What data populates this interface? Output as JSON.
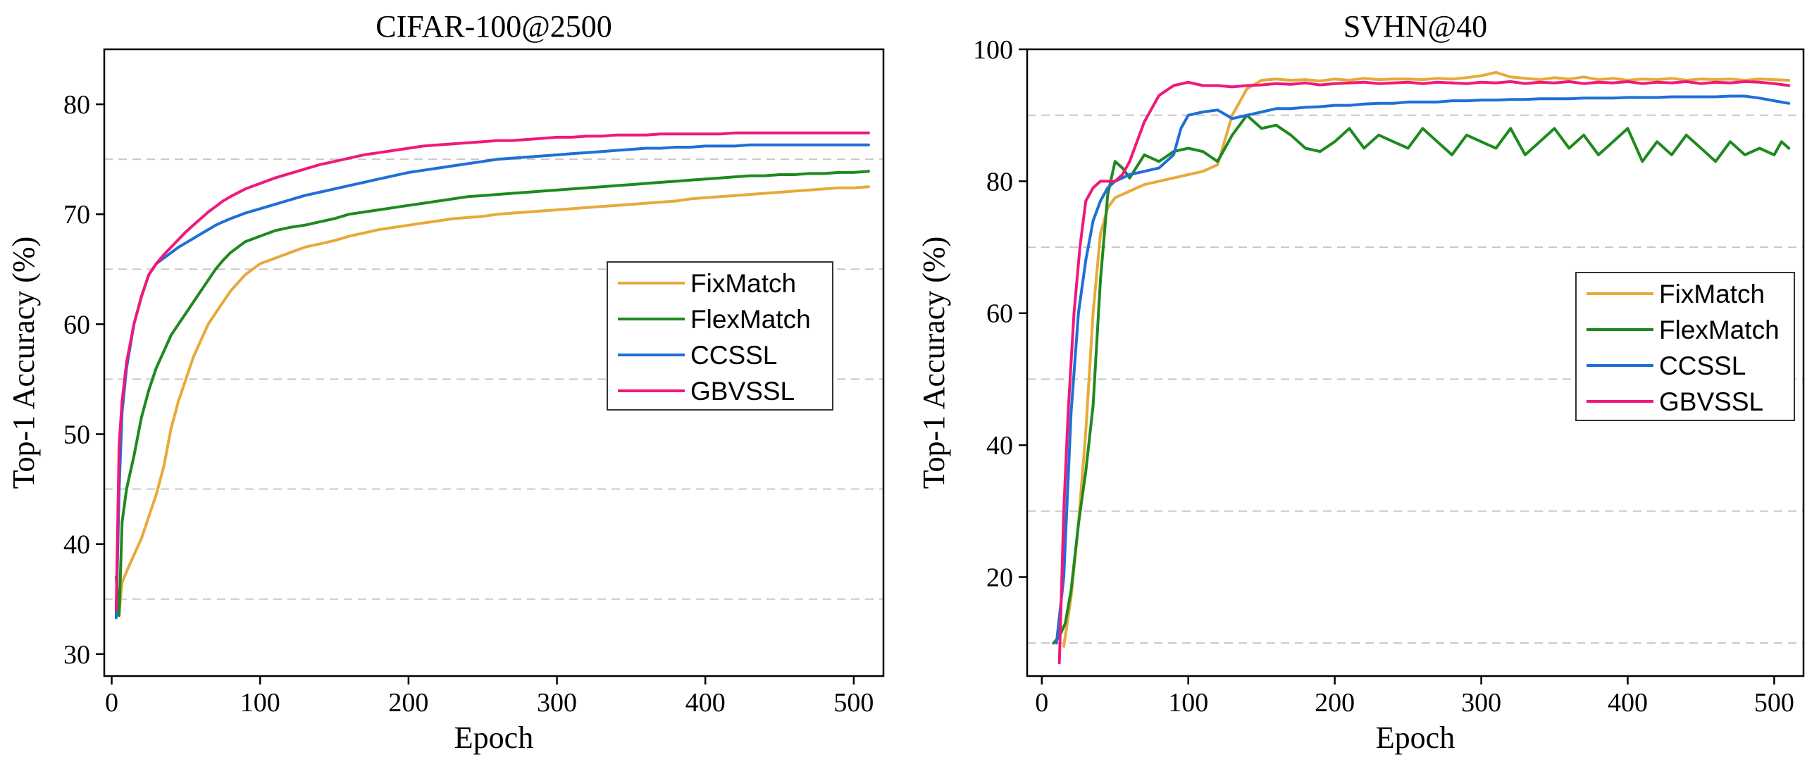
{
  "chart_data": [
    {
      "type": "line",
      "title": "CIFAR-100@2500",
      "xlabel": "Epoch",
      "ylabel": "Top-1 Accuracy (%)",
      "xlim": [
        -5,
        520
      ],
      "ylim": [
        28,
        85
      ],
      "xticks": [
        0,
        100,
        200,
        300,
        400,
        500
      ],
      "yticks": [
        30,
        40,
        50,
        60,
        70,
        80
      ],
      "gridlines_y": [
        35,
        45,
        55,
        65,
        75
      ],
      "grid": "dashed horizontal",
      "legend_position": "center-right",
      "series": [
        {
          "name": "FixMatch",
          "color": "#E8A93B",
          "x": [
            3,
            5,
            7,
            10,
            15,
            20,
            25,
            30,
            35,
            40,
            45,
            50,
            55,
            60,
            65,
            70,
            75,
            80,
            90,
            100,
            110,
            120,
            130,
            140,
            150,
            160,
            170,
            180,
            190,
            200,
            210,
            220,
            230,
            240,
            250,
            260,
            270,
            280,
            290,
            300,
            310,
            320,
            330,
            340,
            350,
            360,
            370,
            380,
            390,
            400,
            410,
            420,
            430,
            440,
            450,
            460,
            470,
            480,
            490,
            500,
            510
          ],
          "y": [
            34,
            33.8,
            36.5,
            37.5,
            39,
            40.5,
            42.5,
            44.5,
            47,
            50.5,
            53,
            55,
            57,
            58.5,
            60,
            61,
            62,
            63,
            64.5,
            65.5,
            66,
            66.5,
            67,
            67.3,
            67.6,
            68,
            68.3,
            68.6,
            68.8,
            69,
            69.2,
            69.4,
            69.6,
            69.7,
            69.8,
            70,
            70.1,
            70.2,
            70.3,
            70.4,
            70.5,
            70.6,
            70.7,
            70.8,
            70.9,
            71,
            71.1,
            71.2,
            71.4,
            71.5,
            71.6,
            71.7,
            71.8,
            71.9,
            72,
            72.1,
            72.2,
            72.3,
            72.4,
            72.4,
            72.5
          ]
        },
        {
          "name": "FlexMatch",
          "color": "#1E8A1E",
          "x": [
            3,
            5,
            7,
            10,
            15,
            20,
            25,
            30,
            35,
            40,
            45,
            50,
            55,
            60,
            65,
            70,
            75,
            80,
            90,
            100,
            110,
            120,
            130,
            140,
            150,
            160,
            170,
            180,
            190,
            200,
            210,
            220,
            230,
            240,
            250,
            260,
            270,
            280,
            290,
            300,
            310,
            320,
            330,
            340,
            350,
            360,
            370,
            380,
            390,
            400,
            410,
            420,
            430,
            440,
            450,
            460,
            470,
            480,
            490,
            500,
            510
          ],
          "y": [
            37,
            33.5,
            42,
            45,
            48,
            51.5,
            54,
            56,
            57.5,
            59,
            60,
            61,
            62,
            63,
            64,
            65,
            65.8,
            66.5,
            67.5,
            68,
            68.5,
            68.8,
            69,
            69.3,
            69.6,
            70,
            70.2,
            70.4,
            70.6,
            70.8,
            71,
            71.2,
            71.4,
            71.6,
            71.7,
            71.8,
            71.9,
            72,
            72.1,
            72.2,
            72.3,
            72.4,
            72.5,
            72.6,
            72.7,
            72.8,
            72.9,
            73,
            73.1,
            73.2,
            73.3,
            73.4,
            73.5,
            73.5,
            73.6,
            73.6,
            73.7,
            73.7,
            73.8,
            73.8,
            73.9
          ]
        },
        {
          "name": "CCSSL",
          "color": "#1F6FD6",
          "x": [
            3,
            5,
            7,
            10,
            15,
            20,
            25,
            30,
            35,
            40,
            45,
            50,
            55,
            60,
            65,
            70,
            75,
            80,
            90,
            100,
            110,
            120,
            130,
            140,
            150,
            160,
            170,
            180,
            190,
            200,
            210,
            220,
            230,
            240,
            250,
            260,
            270,
            280,
            290,
            300,
            310,
            320,
            330,
            340,
            350,
            360,
            370,
            380,
            390,
            400,
            410,
            420,
            430,
            440,
            450,
            460,
            470,
            480,
            490,
            500,
            510
          ],
          "y": [
            33.3,
            45,
            52,
            56,
            60,
            62.5,
            64.5,
            65.5,
            66,
            66.5,
            67,
            67.4,
            67.8,
            68.2,
            68.6,
            69,
            69.3,
            69.6,
            70.1,
            70.5,
            70.9,
            71.3,
            71.7,
            72,
            72.3,
            72.6,
            72.9,
            73.2,
            73.5,
            73.8,
            74,
            74.2,
            74.4,
            74.6,
            74.8,
            75,
            75.1,
            75.2,
            75.3,
            75.4,
            75.5,
            75.6,
            75.7,
            75.8,
            75.9,
            76,
            76,
            76.1,
            76.1,
            76.2,
            76.2,
            76.2,
            76.3,
            76.3,
            76.3,
            76.3,
            76.3,
            76.3,
            76.3,
            76.3,
            76.3
          ]
        },
        {
          "name": "GBVSSL",
          "color": "#F0187C",
          "x": [
            3,
            5,
            7,
            10,
            15,
            20,
            25,
            30,
            35,
            40,
            45,
            50,
            55,
            60,
            65,
            70,
            75,
            80,
            90,
            100,
            110,
            120,
            130,
            140,
            150,
            160,
            170,
            180,
            190,
            200,
            210,
            220,
            230,
            240,
            250,
            260,
            270,
            280,
            290,
            300,
            310,
            320,
            330,
            340,
            350,
            360,
            370,
            380,
            390,
            400,
            410,
            420,
            430,
            440,
            450,
            460,
            470,
            480,
            490,
            500,
            510
          ],
          "y": [
            34,
            49,
            53,
            56.5,
            60,
            62.5,
            64.5,
            65.5,
            66.3,
            67,
            67.7,
            68.4,
            69,
            69.6,
            70.2,
            70.7,
            71.2,
            71.6,
            72.3,
            72.8,
            73.3,
            73.7,
            74.1,
            74.5,
            74.8,
            75.1,
            75.4,
            75.6,
            75.8,
            76,
            76.2,
            76.3,
            76.4,
            76.5,
            76.6,
            76.7,
            76.7,
            76.8,
            76.9,
            77,
            77,
            77.1,
            77.1,
            77.2,
            77.2,
            77.2,
            77.3,
            77.3,
            77.3,
            77.3,
            77.3,
            77.4,
            77.4,
            77.4,
            77.4,
            77.4,
            77.4,
            77.4,
            77.4,
            77.4,
            77.4
          ]
        }
      ]
    },
    {
      "type": "line",
      "title": "SVHN@40",
      "xlabel": "Epoch",
      "ylabel": "Top-1 Accuracy (%)",
      "xlim": [
        -10,
        520
      ],
      "ylim": [
        5,
        100
      ],
      "xticks": [
        0,
        100,
        200,
        300,
        400,
        500
      ],
      "yticks": [
        20,
        40,
        60,
        80,
        100
      ],
      "gridlines_y": [
        10,
        30,
        50,
        70,
        90
      ],
      "grid": "dashed horizontal",
      "legend_position": "center-right",
      "series": [
        {
          "name": "FixMatch",
          "color": "#E8A93B",
          "x": [
            15,
            20,
            25,
            30,
            35,
            40,
            45,
            50,
            55,
            60,
            70,
            80,
            90,
            100,
            110,
            120,
            130,
            140,
            150,
            160,
            170,
            180,
            190,
            200,
            210,
            220,
            230,
            240,
            250,
            260,
            270,
            280,
            290,
            300,
            310,
            320,
            330,
            340,
            350,
            360,
            370,
            380,
            390,
            400,
            410,
            420,
            430,
            440,
            450,
            460,
            470,
            480,
            490,
            500,
            510
          ],
          "y": [
            9.5,
            17,
            28,
            42,
            60,
            72,
            76,
            77.5,
            78,
            78.5,
            79.5,
            80,
            80.5,
            81,
            81.5,
            82.5,
            90,
            94,
            95.3,
            95.5,
            95.3,
            95.4,
            95.2,
            95.5,
            95.3,
            95.6,
            95.4,
            95.5,
            95.5,
            95.4,
            95.6,
            95.5,
            95.7,
            96,
            96.5,
            95.8,
            95.6,
            95.4,
            95.7,
            95.5,
            95.8,
            95.4,
            95.6,
            95.3,
            95.5,
            95.4,
            95.6,
            95.3,
            95.5,
            95.4,
            95.5,
            95.3,
            95.5,
            95.4,
            95.3
          ]
        },
        {
          "name": "FlexMatch",
          "color": "#1E8A1E",
          "x": [
            8,
            12,
            16,
            20,
            25,
            30,
            35,
            40,
            45,
            50,
            55,
            60,
            70,
            80,
            90,
            100,
            110,
            120,
            130,
            140,
            150,
            160,
            170,
            180,
            190,
            200,
            210,
            220,
            230,
            240,
            250,
            260,
            270,
            280,
            290,
            300,
            310,
            320,
            330,
            340,
            350,
            360,
            370,
            380,
            390,
            400,
            410,
            420,
            430,
            440,
            450,
            460,
            470,
            480,
            490,
            500,
            505,
            510
          ],
          "y": [
            10,
            11,
            13,
            18,
            28,
            36,
            46,
            65,
            78,
            83,
            82,
            80.5,
            84,
            83,
            84.5,
            85,
            84.5,
            83,
            87,
            90,
            88,
            88.5,
            87,
            85,
            84.5,
            86,
            88,
            85,
            87,
            86,
            85,
            88,
            86,
            84,
            87,
            86,
            85,
            88,
            84,
            86,
            88,
            85,
            87,
            84,
            86,
            88,
            83,
            86,
            84,
            87,
            85,
            83,
            86,
            84,
            85,
            84,
            86,
            85
          ]
        },
        {
          "name": "CCSSL",
          "color": "#1F6FD6",
          "x": [
            10,
            15,
            20,
            25,
            30,
            35,
            40,
            45,
            50,
            55,
            60,
            70,
            80,
            90,
            95,
            100,
            110,
            120,
            130,
            140,
            150,
            160,
            170,
            180,
            190,
            200,
            210,
            220,
            230,
            240,
            250,
            260,
            270,
            280,
            290,
            300,
            310,
            320,
            330,
            340,
            350,
            360,
            370,
            380,
            390,
            400,
            410,
            420,
            430,
            440,
            450,
            460,
            470,
            480,
            490,
            500,
            510
          ],
          "y": [
            10,
            20,
            45,
            60,
            68,
            74,
            77,
            79,
            80,
            80.5,
            81,
            81.5,
            82,
            84,
            88,
            90,
            90.5,
            90.8,
            89.5,
            90,
            90.5,
            91,
            91,
            91.2,
            91.3,
            91.5,
            91.5,
            91.7,
            91.8,
            91.8,
            92,
            92,
            92,
            92.2,
            92.2,
            92.3,
            92.3,
            92.4,
            92.4,
            92.5,
            92.5,
            92.5,
            92.6,
            92.6,
            92.6,
            92.7,
            92.7,
            92.7,
            92.8,
            92.8,
            92.8,
            92.8,
            92.9,
            92.9,
            92.6,
            92.2,
            91.8
          ]
        },
        {
          "name": "GBVSSL",
          "color": "#F0187C",
          "x": [
            12,
            15,
            18,
            22,
            26,
            30,
            35,
            40,
            45,
            50,
            55,
            60,
            65,
            70,
            75,
            80,
            90,
            100,
            110,
            120,
            130,
            140,
            150,
            160,
            170,
            180,
            190,
            200,
            210,
            220,
            230,
            240,
            250,
            260,
            270,
            280,
            290,
            300,
            310,
            320,
            330,
            340,
            350,
            360,
            370,
            380,
            390,
            400,
            410,
            420,
            430,
            440,
            450,
            460,
            470,
            480,
            490,
            500,
            510
          ],
          "y": [
            7,
            30,
            45,
            60,
            70,
            77,
            79,
            80,
            80,
            80,
            81,
            83,
            86,
            89,
            91,
            93,
            94.5,
            95,
            94.5,
            94.5,
            94.3,
            94.5,
            94.6,
            94.8,
            94.7,
            94.9,
            94.6,
            94.8,
            94.9,
            95,
            94.8,
            94.9,
            95,
            94.8,
            95,
            94.9,
            94.8,
            95,
            94.9,
            95.1,
            94.8,
            95,
            94.9,
            95.1,
            94.8,
            95,
            94.9,
            95.1,
            94.8,
            95,
            94.9,
            95.1,
            94.8,
            95,
            94.9,
            95.1,
            95,
            94.8,
            94.5
          ]
        }
      ]
    }
  ]
}
